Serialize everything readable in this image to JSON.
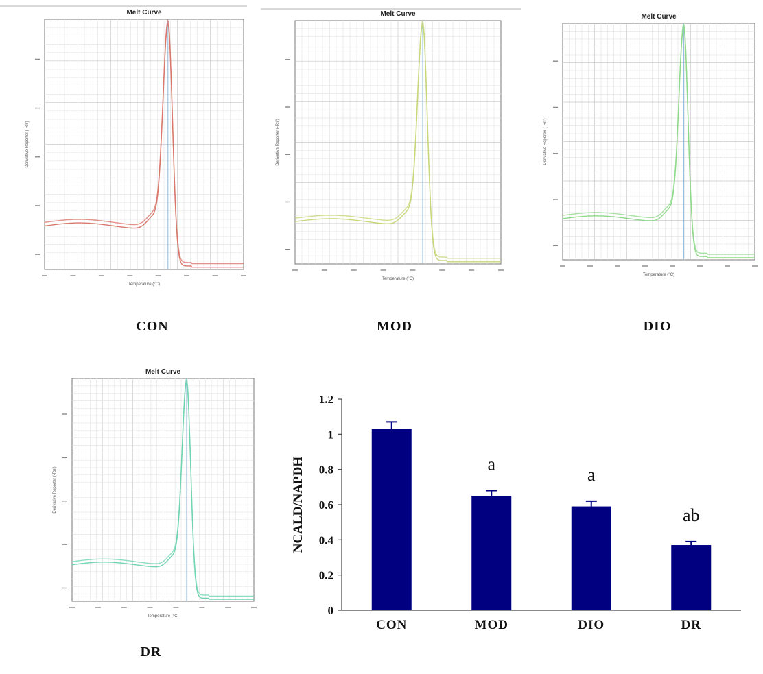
{
  "melt_panels": [
    {
      "id": "con",
      "title": "Melt Curve",
      "xlabel": "Temperature (°C)",
      "ylabel": "Derivative Reporter (-Rn')",
      "caption": "CON",
      "color": "#d9776b",
      "baseline_level": 0.18,
      "peak_level": 0.99,
      "peak_x": 0.62,
      "peak_width": 0.035
    },
    {
      "id": "mod",
      "title": "Melt Curve",
      "xlabel": "Temperature (°C)",
      "ylabel": "Derivative Reporter (-Rn')",
      "caption": "MOD",
      "color": "#c9d77a",
      "baseline_level": 0.18,
      "peak_level": 0.99,
      "peak_x": 0.62,
      "peak_width": 0.035
    },
    {
      "id": "dio",
      "title": "Melt Curve",
      "xlabel": "Temperature (°C)",
      "ylabel": "Derivative Reporter (-Rn')",
      "caption": "DIO",
      "color": "#8fd98a",
      "baseline_level": 0.18,
      "peak_level": 0.99,
      "peak_x": 0.63,
      "peak_width": 0.035
    },
    {
      "id": "dr",
      "title": "Melt Curve",
      "xlabel": "Temperature (°C)",
      "ylabel": "Derivative Reporter (-Rn')",
      "caption": "DR",
      "color": "#6fd4b0",
      "baseline_level": 0.17,
      "peak_level": 0.99,
      "peak_x": 0.63,
      "peak_width": 0.035
    }
  ],
  "chart_data": {
    "type": "bar",
    "categories": [
      "CON",
      "MOD",
      "DIO",
      "DR"
    ],
    "values": [
      1.03,
      0.65,
      0.59,
      0.37
    ],
    "errors": [
      0.04,
      0.03,
      0.03,
      0.02
    ],
    "annotations": [
      "",
      "a",
      "a",
      "ab"
    ],
    "ylabel": "NCALD/NAPDH",
    "ylim": [
      0,
      1.2
    ],
    "yticks": [
      "0",
      "0.2",
      "0.4",
      "0.6",
      "0.8",
      "1",
      "1.2"
    ],
    "ytick_values": [
      0,
      0.2,
      0.4,
      0.6,
      0.8,
      1,
      1.2
    ],
    "bar_color": "#000080",
    "grid": false
  }
}
